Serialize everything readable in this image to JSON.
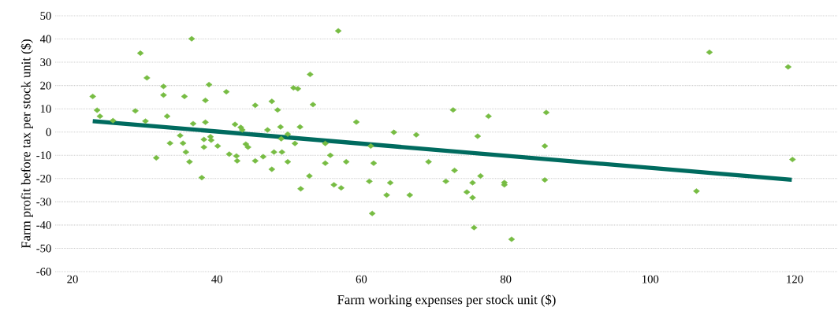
{
  "chart_data": {
    "type": "scatter",
    "xlabel": "Farm working expenses per stock unit ($)",
    "ylabel": "Farm profit before tax per stock unit ($)",
    "xlim": [
      17.6,
      126
    ],
    "ylim": [
      -60,
      50
    ],
    "xticks": [
      20,
      40,
      60,
      80,
      100,
      120
    ],
    "yticks": [
      -60,
      -50,
      -40,
      -30,
      -20,
      -10,
      0,
      10,
      20,
      30,
      40,
      50
    ],
    "grid": "y",
    "series": [
      {
        "color": "#77bc43",
        "marker": "diamond",
        "x": [
          22.8,
          23.4,
          23.8,
          25.6,
          28.7,
          29.4,
          30.3,
          30.1,
          31.6,
          32.6,
          32.6,
          33.1,
          34.9,
          33.5,
          35.3,
          35.5,
          35.7,
          36.2,
          36.5,
          36.7,
          37.9,
          38.2,
          38.2,
          38.4,
          38.4,
          38.9,
          39.1,
          39.2,
          40.1,
          41.3,
          41.7,
          42.5,
          42.7,
          42.8,
          43.3,
          43.5,
          44,
          44.3,
          45.3,
          45.3,
          46.4,
          47,
          47.6,
          48.4,
          48.8,
          47.9,
          49,
          48.9,
          49.8,
          50.8,
          49.8,
          47.6,
          50.6,
          51.2,
          51.5,
          51.6,
          52.8,
          52.9,
          53.3,
          55,
          55.7,
          55,
          56.2,
          57.2,
          56.8,
          57.9,
          59.3,
          61.3,
          61.7,
          61.1,
          61.5,
          64.5,
          64,
          63.5,
          66.7,
          67.6,
          69.3,
          71.7,
          72.7,
          72.9,
          74.6,
          75.4,
          75.4,
          75.6,
          76.1,
          76.5,
          77.6,
          79.8,
          79.8,
          80.8,
          85.6,
          85.4,
          85.4,
          106.4,
          108.2,
          119.1,
          119.7
        ],
        "values": [
          15.3,
          9.4,
          6.8,
          4.9,
          9.1,
          33.9,
          23.3,
          4.7,
          -11.1,
          19.6,
          15.9,
          6.8,
          -1.5,
          -4.8,
          -4.8,
          15.3,
          -8.6,
          -12.8,
          40.1,
          3.6,
          -19.6,
          -3.2,
          -6.5,
          13.6,
          4.2,
          20.4,
          -2,
          -3.5,
          -6,
          17.3,
          -9.5,
          3.3,
          -10.3,
          -12.4,
          2,
          0.9,
          -5.2,
          -6.5,
          11.5,
          -12.4,
          -10.6,
          0.9,
          13.2,
          9.5,
          2.2,
          -8.6,
          -8.6,
          -2.9,
          -0.9,
          -4.9,
          -12.8,
          -16,
          19,
          18.6,
          2.2,
          -24.4,
          -18.9,
          24.8,
          11.8,
          -4.9,
          -10,
          -13.4,
          -22.7,
          -24,
          43.5,
          -12.8,
          4.3,
          -6,
          -13.4,
          -21.2,
          -35,
          -0.1,
          -21.8,
          -27.1,
          -27.1,
          -1.2,
          -12.8,
          -21.2,
          9.5,
          -16.5,
          -25.8,
          -21.8,
          -28.2,
          -41.1,
          -1.8,
          -18.9,
          6.8,
          -21.7,
          -22.7,
          -46.1,
          8.4,
          -6,
          -20.6,
          -25.4,
          34.3,
          28,
          -11.8
        ]
      },
      {
        "type": "line",
        "color": "#006b5f",
        "marker": "none",
        "line_style": "solid",
        "x": [
          22.8,
          119.6
        ],
        "values": [
          4.7,
          -20.5
        ]
      }
    ]
  }
}
